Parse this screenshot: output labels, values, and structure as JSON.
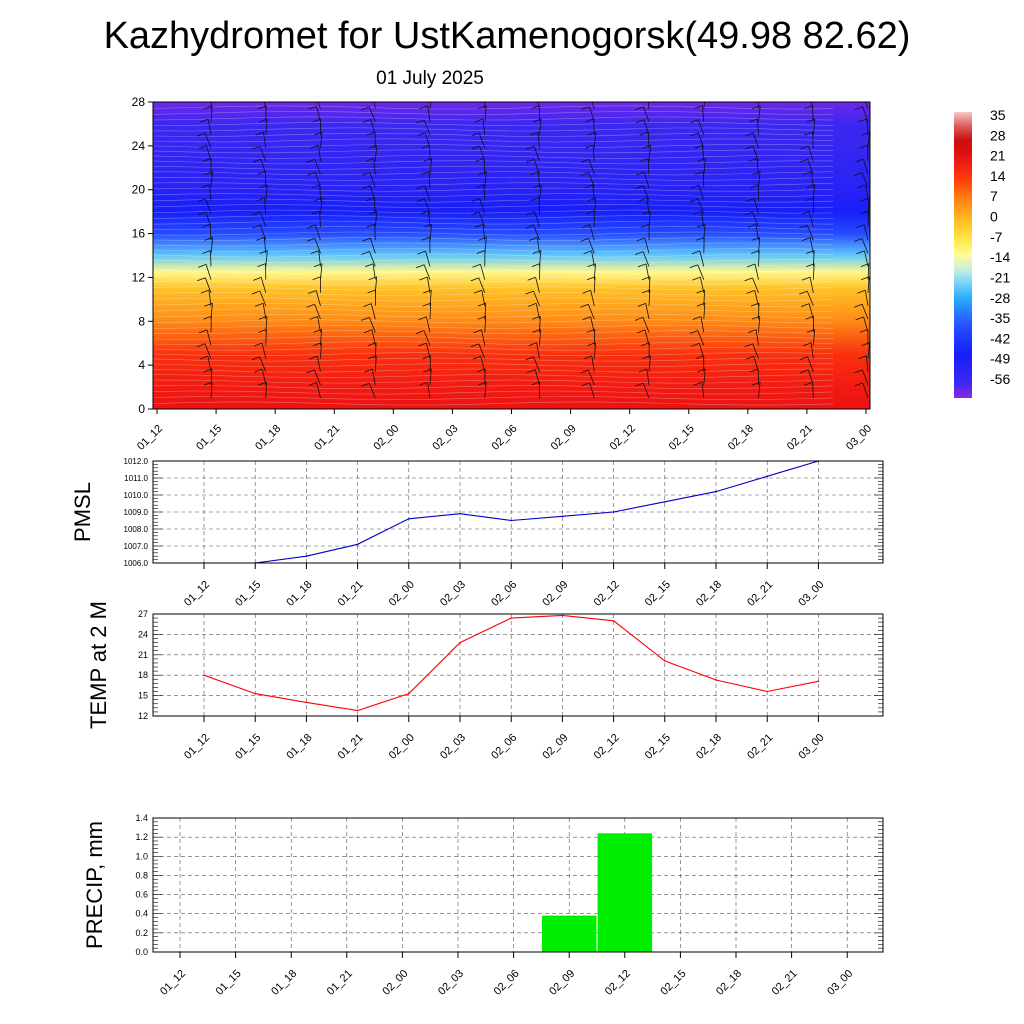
{
  "title": "Kazhydromet for UstKamenogorsk(49.98 82.62)",
  "subtitle": "01 July 2025",
  "chart_data": [
    {
      "type": "heatmap",
      "name": "cross-section",
      "y_ticks": [
        "0",
        "4",
        "8",
        "12",
        "16",
        "20",
        "24",
        "28"
      ],
      "ylim": [
        0,
        28
      ],
      "x_ticks": [
        "01_12",
        "01_15",
        "01_18",
        "01_21",
        "02_00",
        "02_03",
        "02_06",
        "02_09",
        "02_12",
        "02_15",
        "02_18",
        "02_21",
        "03_00"
      ],
      "colorbar_labels": [
        "35",
        "28",
        "21",
        "14",
        "7",
        "0",
        "-7",
        "-14",
        "-21",
        "-28",
        "-35",
        "-42",
        "-49",
        "-56"
      ],
      "colorbar_range": [
        -60,
        38
      ],
      "temperature_profile": [
        {
          "level": 0,
          "value": 22
        },
        {
          "level": 2,
          "value": 20
        },
        {
          "level": 5,
          "value": 17
        },
        {
          "level": 8,
          "value": 7
        },
        {
          "level": 11,
          "value": 0
        },
        {
          "level": 12.5,
          "value": -10
        },
        {
          "level": 14,
          "value": -22
        },
        {
          "level": 16,
          "value": -36
        },
        {
          "level": 18,
          "value": -46
        },
        {
          "level": 20,
          "value": -50
        },
        {
          "level": 23,
          "value": -53
        },
        {
          "level": 26,
          "value": -55
        },
        {
          "level": 28,
          "value": -58
        }
      ],
      "wind_barbs": true
    },
    {
      "type": "line",
      "ylabel": "PMSL",
      "categories": [
        "01_12",
        "01_15",
        "01_18",
        "01_21",
        "02_00",
        "02_03",
        "02_06",
        "02_09",
        "02_12",
        "02_15",
        "02_18",
        "02_21",
        "03_00"
      ],
      "y_ticks": [
        "1006.0",
        "1007.0",
        "1008.0",
        "1009.0",
        "1010.0",
        "1011.0",
        "1012.0"
      ],
      "ylim": [
        1006,
        1012
      ],
      "values": [
        1006.0,
        1006.0,
        1006.4,
        1007.1,
        1008.6,
        1008.9,
        1008.5,
        1008.75,
        1009.0,
        1009.6,
        1010.2,
        1011.1,
        1012.0
      ],
      "color": "#0000cc",
      "grid": true
    },
    {
      "type": "line",
      "ylabel": "TEMP at 2 M",
      "categories": [
        "01_12",
        "01_15",
        "01_18",
        "01_21",
        "02_00",
        "02_03",
        "02_06",
        "02_09",
        "02_12",
        "02_15",
        "02_18",
        "02_21",
        "03_00"
      ],
      "y_ticks": [
        "12",
        "15",
        "18",
        "21",
        "24",
        "27"
      ],
      "ylim": [
        12,
        27
      ],
      "values": [
        18.0,
        15.3,
        14.0,
        12.8,
        15.3,
        22.8,
        26.4,
        26.8,
        26.0,
        20.1,
        17.3,
        15.6,
        17.1
      ],
      "color": "#ff0000",
      "grid": true
    },
    {
      "type": "bar",
      "ylabel": "PRECIP, mm",
      "categories": [
        "01_12",
        "01_15",
        "01_18",
        "01_21",
        "02_00",
        "02_03",
        "02_06",
        "02_09",
        "02_12",
        "02_15",
        "02_18",
        "02_21",
        "03_00"
      ],
      "y_ticks": [
        "0.0",
        "0.2",
        "0.4",
        "0.6",
        "0.8",
        "1.0",
        "1.2",
        "1.4"
      ],
      "ylim": [
        0,
        1.4
      ],
      "values": [
        0,
        0,
        0,
        0,
        0,
        0,
        0,
        0.38,
        1.24,
        0,
        0,
        0,
        0
      ],
      "color": "#00ee00",
      "grid": true
    }
  ]
}
